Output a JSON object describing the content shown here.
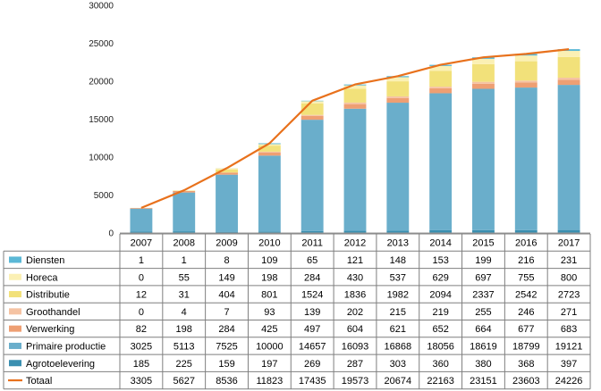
{
  "chart_data": {
    "type": "bar",
    "stacked": true,
    "title": "",
    "xlabel": "",
    "ylabel": "",
    "ylim": [
      0,
      30000
    ],
    "yticks": [
      0,
      5000,
      10000,
      15000,
      20000,
      25000,
      30000
    ],
    "grid": false,
    "legend": "data-table",
    "categories": [
      "2007",
      "2008",
      "2009",
      "2010",
      "2011",
      "2012",
      "2013",
      "2014",
      "2015",
      "2016",
      "2017"
    ],
    "series": [
      {
        "name": "Diensten",
        "kind": "bar",
        "color": "#5bb8d6",
        "values": [
          1,
          1,
          8,
          109,
          65,
          121,
          148,
          153,
          199,
          216,
          231
        ]
      },
      {
        "name": "Horeca",
        "kind": "bar",
        "color": "#fbf0b4",
        "values": [
          0,
          55,
          149,
          198,
          284,
          430,
          537,
          629,
          697,
          755,
          800
        ]
      },
      {
        "name": "Distributie",
        "kind": "bar",
        "color": "#f2e17a",
        "values": [
          12,
          31,
          404,
          801,
          1524,
          1836,
          1982,
          2094,
          2337,
          2542,
          2723
        ]
      },
      {
        "name": "Groothandel",
        "kind": "bar",
        "color": "#f5c3a3",
        "values": [
          0,
          4,
          7,
          93,
          139,
          202,
          215,
          219,
          255,
          246,
          271
        ]
      },
      {
        "name": "Verwerking",
        "kind": "bar",
        "color": "#ee9f73",
        "values": [
          82,
          198,
          284,
          425,
          497,
          604,
          621,
          652,
          664,
          677,
          683
        ]
      },
      {
        "name": "Primaire productie",
        "kind": "bar",
        "color": "#6aaecb",
        "values": [
          3025,
          5113,
          7525,
          10000,
          14657,
          16093,
          16868,
          18056,
          18619,
          18799,
          19121
        ]
      },
      {
        "name": "Agrotoelevering",
        "kind": "bar",
        "color": "#3a8fb0",
        "values": [
          185,
          225,
          159,
          197,
          269,
          287,
          303,
          360,
          380,
          368,
          397
        ]
      },
      {
        "name": "Totaal",
        "kind": "line",
        "color": "#e8711c",
        "values": [
          3305,
          5627,
          8536,
          11823,
          17435,
          19573,
          20674,
          22163,
          23151,
          23603,
          24226
        ]
      }
    ]
  }
}
